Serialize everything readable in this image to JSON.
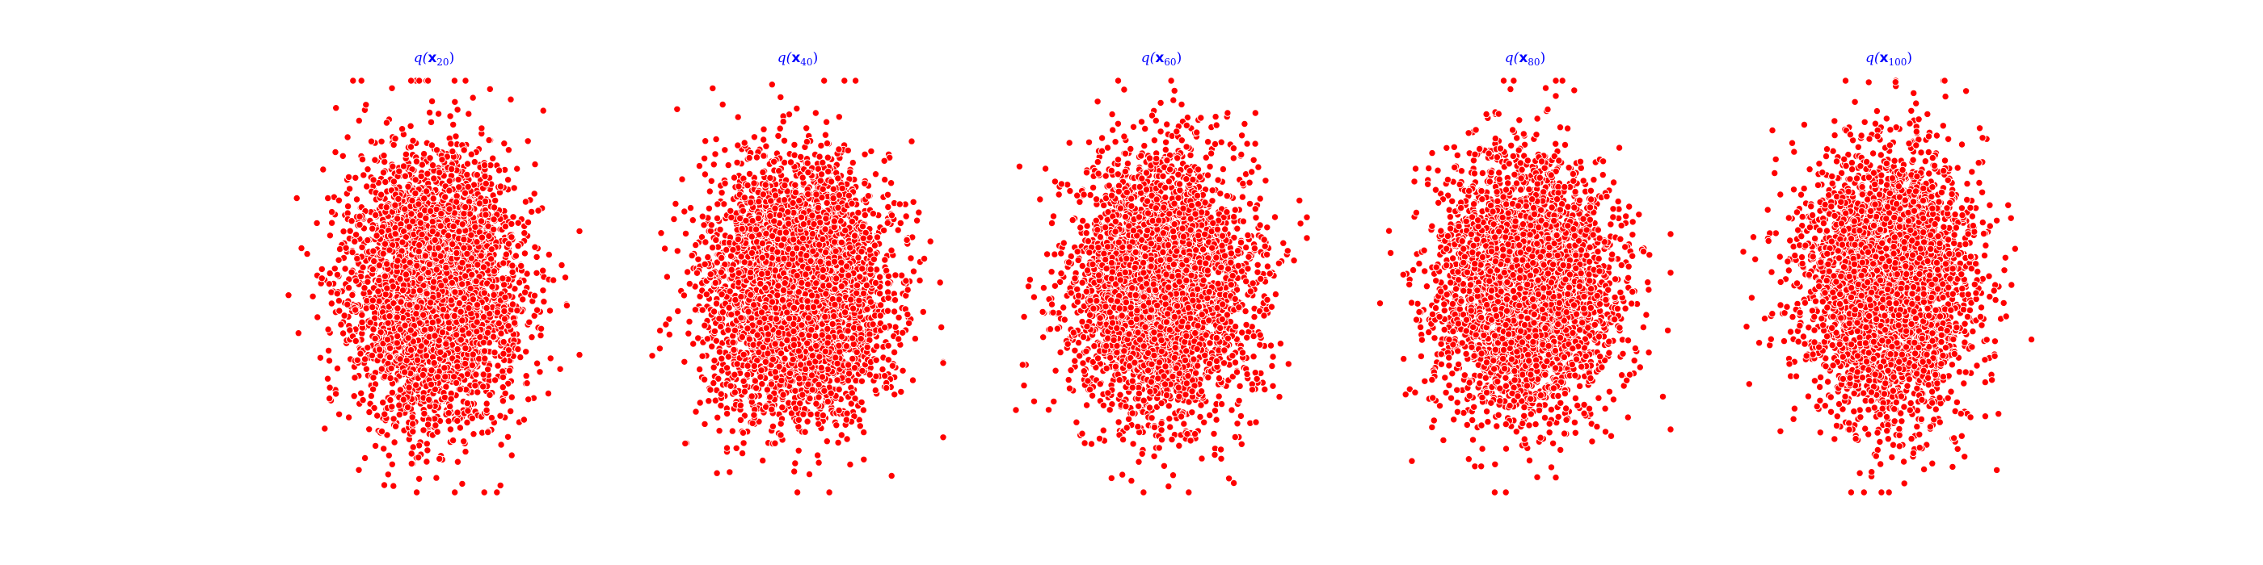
{
  "chart_data": [
    {
      "type": "scatter",
      "title": {
        "q": "q(",
        "bold": "x",
        "sub": "20",
        "close": ")"
      },
      "marker_color": "#ff0000",
      "marker_edge": "#ffffff",
      "axes": "off",
      "grid": false,
      "xlim": [
        -3.2,
        3.2
      ],
      "ylim": [
        -3.3,
        3.3
      ],
      "distribution": {
        "x_std": 0.95,
        "y_std": 1.1,
        "n": 3500,
        "seed": 20
      }
    },
    {
      "type": "scatter",
      "title": {
        "q": "q(",
        "bold": "x",
        "sub": "40",
        "close": ")"
      },
      "marker_color": "#ff0000",
      "marker_edge": "#ffffff",
      "axes": "off",
      "grid": false,
      "xlim": [
        -3.2,
        3.2
      ],
      "ylim": [
        -3.3,
        3.3
      ],
      "distribution": {
        "x_std": 1.0,
        "y_std": 1.05,
        "n": 3500,
        "seed": 40
      }
    },
    {
      "type": "scatter",
      "title": {
        "q": "q(",
        "bold": "x",
        "sub": "60",
        "close": ")"
      },
      "marker_color": "#ff0000",
      "marker_edge": "#ffffff",
      "axes": "off",
      "grid": false,
      "xlim": [
        -3.2,
        3.2
      ],
      "ylim": [
        -3.3,
        3.3
      ],
      "distribution": {
        "x_std": 0.98,
        "y_std": 1.05,
        "n": 3500,
        "seed": 60
      }
    },
    {
      "type": "scatter",
      "title": {
        "q": "q(",
        "bold": "x",
        "sub": "80",
        "close": ")"
      },
      "marker_color": "#ff0000",
      "marker_edge": "#ffffff",
      "axes": "off",
      "grid": false,
      "xlim": [
        -3.2,
        3.2
      ],
      "ylim": [
        -3.3,
        3.3
      ],
      "distribution": {
        "x_std": 0.95,
        "y_std": 1.0,
        "n": 3500,
        "seed": 80
      }
    },
    {
      "type": "scatter",
      "title": {
        "q": "q(",
        "bold": "x",
        "sub": "100",
        "close": ")"
      },
      "marker_color": "#ff0000",
      "marker_edge": "#ffffff",
      "axes": "off",
      "grid": false,
      "xlim": [
        -3.2,
        3.2
      ],
      "ylim": [
        -3.3,
        3.3
      ],
      "distribution": {
        "x_std": 0.9,
        "y_std": 1.05,
        "n": 3500,
        "seed": 100
      }
    }
  ]
}
